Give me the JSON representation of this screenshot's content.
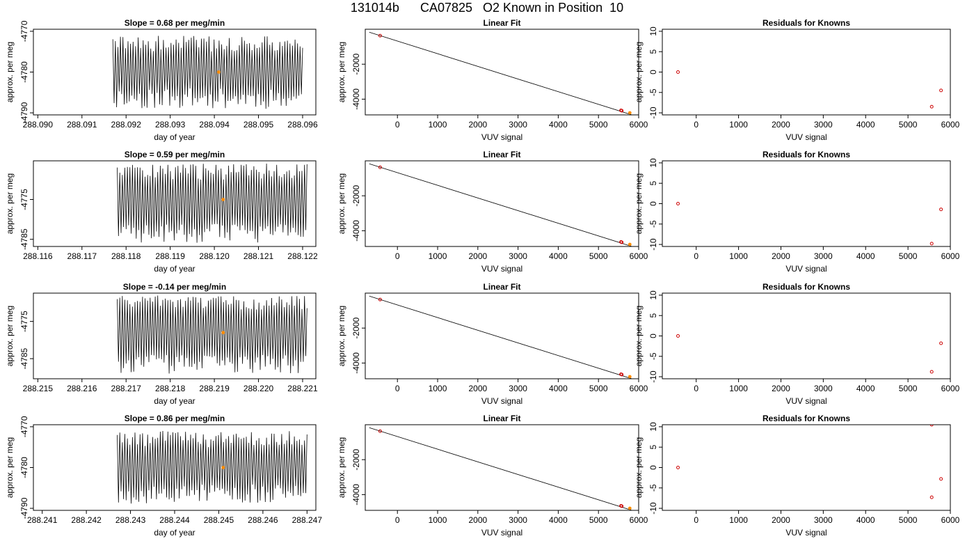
{
  "page_title": "131014b      CA07825   O2 Known in Position  10",
  "colors": {
    "trace": "#000000",
    "known_point": "#cc0000",
    "highlight_point": "#ff8c00",
    "axis": "#000000"
  },
  "chart_data": [
    {
      "panel": "slope",
      "row": 1,
      "type": "line",
      "title": "Slope =  0.68  per meg/min",
      "xlabel": "day of year",
      "ylabel": "approx. per meg",
      "xlim": [
        288.0899,
        288.0963
      ],
      "ylim": [
        -4790.5,
        -4769.5
      ],
      "xticks": [
        "288.090",
        "288.091",
        "288.092",
        "288.093",
        "288.094",
        "288.095",
        "288.096"
      ],
      "yticks": [
        "-4770",
        "-4780",
        "-4790"
      ],
      "trace": {
        "x_start": 288.0917,
        "x_end": 288.096,
        "y_low": -4789,
        "y_high": -4771,
        "seed": 11
      },
      "highlight_point": {
        "x": 288.0941,
        "y": -4780
      }
    },
    {
      "panel": "linear_fit",
      "row": 1,
      "type": "scatter",
      "title": "Linear Fit",
      "xlabel": "VUV signal",
      "ylabel": "approx. per meg",
      "xlim": [
        -800,
        6000
      ],
      "ylim": [
        -4900,
        0
      ],
      "xticks": [
        "0",
        "1000",
        "2000",
        "3000",
        "4000",
        "5000",
        "6000"
      ],
      "yticks": [
        "-2000",
        "-4000"
      ],
      "fit_line": {
        "x": [
          -700,
          5820
        ],
        "y": [
          -170,
          -4890
        ]
      },
      "points": [
        {
          "x": -430,
          "y": -370
        },
        {
          "x": 5560,
          "y": -4640
        },
        {
          "x": 5580,
          "y": -4660
        }
      ],
      "highlight_point": {
        "x": 5780,
        "y": -4780
      }
    },
    {
      "panel": "residuals",
      "row": 1,
      "type": "scatter",
      "title": "Residuals for Knowns",
      "xlabel": "VUV signal",
      "ylabel": "approx. per meg",
      "xlim": [
        -800,
        6000
      ],
      "ylim": [
        -10.5,
        10.5
      ],
      "xticks": [
        "0",
        "1000",
        "2000",
        "3000",
        "4000",
        "5000",
        "6000"
      ],
      "yticks": [
        "10",
        "5",
        "0",
        "-5",
        "-10"
      ],
      "points": [
        {
          "x": -430,
          "y": 0
        },
        {
          "x": 5560,
          "y": -8.5
        },
        {
          "x": 5780,
          "y": -4.5
        }
      ]
    },
    {
      "panel": "slope",
      "row": 2,
      "type": "line",
      "title": "Slope =  0.59  per meg/min",
      "xlabel": "day of year",
      "ylabel": "approx. per meg",
      "xlim": [
        288.1159,
        288.1223
      ],
      "ylim": [
        -4786.8,
        -4765.3
      ],
      "xticks": [
        "288.116",
        "288.117",
        "288.118",
        "288.119",
        "288.120",
        "288.121",
        "288.122"
      ],
      "yticks": [
        "-4775",
        "-4785"
      ],
      "trace": {
        "x_start": 288.1178,
        "x_end": 288.1221,
        "y_low": -4786,
        "y_high": -4766,
        "seed": 23
      },
      "highlight_point": {
        "x": 288.1202,
        "y": -4775
      }
    },
    {
      "panel": "linear_fit",
      "row": 2,
      "type": "scatter",
      "title": "Linear Fit",
      "xlabel": "VUV signal",
      "ylabel": "approx. per meg",
      "xlim": [
        -800,
        6000
      ],
      "ylim": [
        -4900,
        0
      ],
      "xticks": [
        "0",
        "1000",
        "2000",
        "3000",
        "4000",
        "5000",
        "6000"
      ],
      "yticks": [
        "-2000",
        "-4000"
      ],
      "fit_line": {
        "x": [
          -700,
          5820
        ],
        "y": [
          -170,
          -4890
        ]
      },
      "points": [
        {
          "x": -430,
          "y": -370
        },
        {
          "x": 5560,
          "y": -4640
        },
        {
          "x": 5580,
          "y": -4660
        }
      ],
      "highlight_point": {
        "x": 5780,
        "y": -4780
      }
    },
    {
      "panel": "residuals",
      "row": 2,
      "type": "scatter",
      "title": "Residuals for Knowns",
      "xlabel": "VUV signal",
      "ylabel": "approx. per meg",
      "xlim": [
        -800,
        6000
      ],
      "ylim": [
        -10.5,
        10.5
      ],
      "xticks": [
        "0",
        "1000",
        "2000",
        "3000",
        "4000",
        "5000",
        "6000"
      ],
      "yticks": [
        "10",
        "5",
        "0",
        "-5",
        "-10"
      ],
      "points": [
        {
          "x": -430,
          "y": 0
        },
        {
          "x": 5560,
          "y": -9.8
        },
        {
          "x": 5780,
          "y": -1.4
        }
      ]
    },
    {
      "panel": "slope",
      "row": 3,
      "type": "line",
      "title": "Slope =  -0.14  per meg/min",
      "xlabel": "day of year",
      "ylabel": "approx. per meg",
      "xlim": [
        288.2149,
        288.2213
      ],
      "ylim": [
        -4790.4,
        -4767.4
      ],
      "xticks": [
        "288.215",
        "288.216",
        "288.217",
        "288.218",
        "288.219",
        "288.220",
        "288.221"
      ],
      "yticks": [
        "-4775",
        "-4785"
      ],
      "trace": {
        "x_start": 288.2168,
        "x_end": 288.2211,
        "y_low": -4789,
        "y_high": -4768,
        "seed": 37
      },
      "highlight_point": {
        "x": 288.2192,
        "y": -4778
      }
    },
    {
      "panel": "linear_fit",
      "row": 3,
      "type": "scatter",
      "title": "Linear Fit",
      "xlabel": "VUV signal",
      "ylabel": "approx. per meg",
      "xlim": [
        -800,
        6000
      ],
      "ylim": [
        -4900,
        0
      ],
      "xticks": [
        "0",
        "1000",
        "2000",
        "3000",
        "4000",
        "5000",
        "6000"
      ],
      "yticks": [
        "-2000",
        "-4000"
      ],
      "fit_line": {
        "x": [
          -700,
          5820
        ],
        "y": [
          -170,
          -4890
        ]
      },
      "points": [
        {
          "x": -430,
          "y": -370
        },
        {
          "x": 5560,
          "y": -4640
        },
        {
          "x": 5580,
          "y": -4660
        }
      ],
      "highlight_point": {
        "x": 5780,
        "y": -4780
      }
    },
    {
      "panel": "residuals",
      "row": 3,
      "type": "scatter",
      "title": "Residuals for Knowns",
      "xlabel": "VUV signal",
      "ylabel": "approx. per meg",
      "xlim": [
        -800,
        6000
      ],
      "ylim": [
        -10.5,
        10.5
      ],
      "xticks": [
        "0",
        "1000",
        "2000",
        "3000",
        "4000",
        "5000",
        "6000"
      ],
      "yticks": [
        "10",
        "5",
        "0",
        "-5",
        "-10"
      ],
      "points": [
        {
          "x": -430,
          "y": 0
        },
        {
          "x": 5560,
          "y": -8.8
        },
        {
          "x": 5780,
          "y": -1.8
        }
      ]
    },
    {
      "panel": "slope",
      "row": 4,
      "type": "line",
      "title": "Slope =  0.86  per meg/min",
      "xlabel": "day of year",
      "ylabel": "approx. per meg",
      "xlim": [
        288.2408,
        288.2472
      ],
      "ylim": [
        -4790.5,
        -4769.5
      ],
      "xticks": [
        "288.241",
        "288.242",
        "288.243",
        "288.244",
        "288.245",
        "288.246",
        "288.247"
      ],
      "yticks": [
        "-4770",
        "-4780",
        "-4790"
      ],
      "trace": {
        "x_start": 288.2427,
        "x_end": 288.247,
        "y_low": -4789,
        "y_high": -4771,
        "seed": 53
      },
      "highlight_point": {
        "x": 288.2451,
        "y": -4780
      }
    },
    {
      "panel": "linear_fit",
      "row": 4,
      "type": "scatter",
      "title": "Linear Fit",
      "xlabel": "VUV signal",
      "ylabel": "approx. per meg",
      "xlim": [
        -800,
        6000
      ],
      "ylim": [
        -4900,
        0
      ],
      "xticks": [
        "0",
        "1000",
        "2000",
        "3000",
        "4000",
        "5000",
        "6000"
      ],
      "yticks": [
        "-2000",
        "-4000"
      ],
      "fit_line": {
        "x": [
          -700,
          5820
        ],
        "y": [
          -170,
          -4890
        ]
      },
      "points": [
        {
          "x": -430,
          "y": -370
        },
        {
          "x": 5560,
          "y": -4640
        },
        {
          "x": 5580,
          "y": -4660
        }
      ],
      "highlight_point": {
        "x": 5780,
        "y": -4780
      }
    },
    {
      "panel": "residuals",
      "row": 4,
      "type": "scatter",
      "title": "Residuals for Knowns",
      "xlabel": "VUV signal",
      "ylabel": "approx. per meg",
      "xlim": [
        -800,
        6000
      ],
      "ylim": [
        -10.5,
        10.5
      ],
      "xticks": [
        "0",
        "1000",
        "2000",
        "3000",
        "4000",
        "5000",
        "6000"
      ],
      "yticks": [
        "10",
        "5",
        "0",
        "-5",
        "-10"
      ],
      "points": [
        {
          "x": -430,
          "y": 0
        },
        {
          "x": 5560,
          "y": 10.5
        },
        {
          "x": 5560,
          "y": -7.3
        },
        {
          "x": 5780,
          "y": -2.8
        }
      ]
    }
  ]
}
